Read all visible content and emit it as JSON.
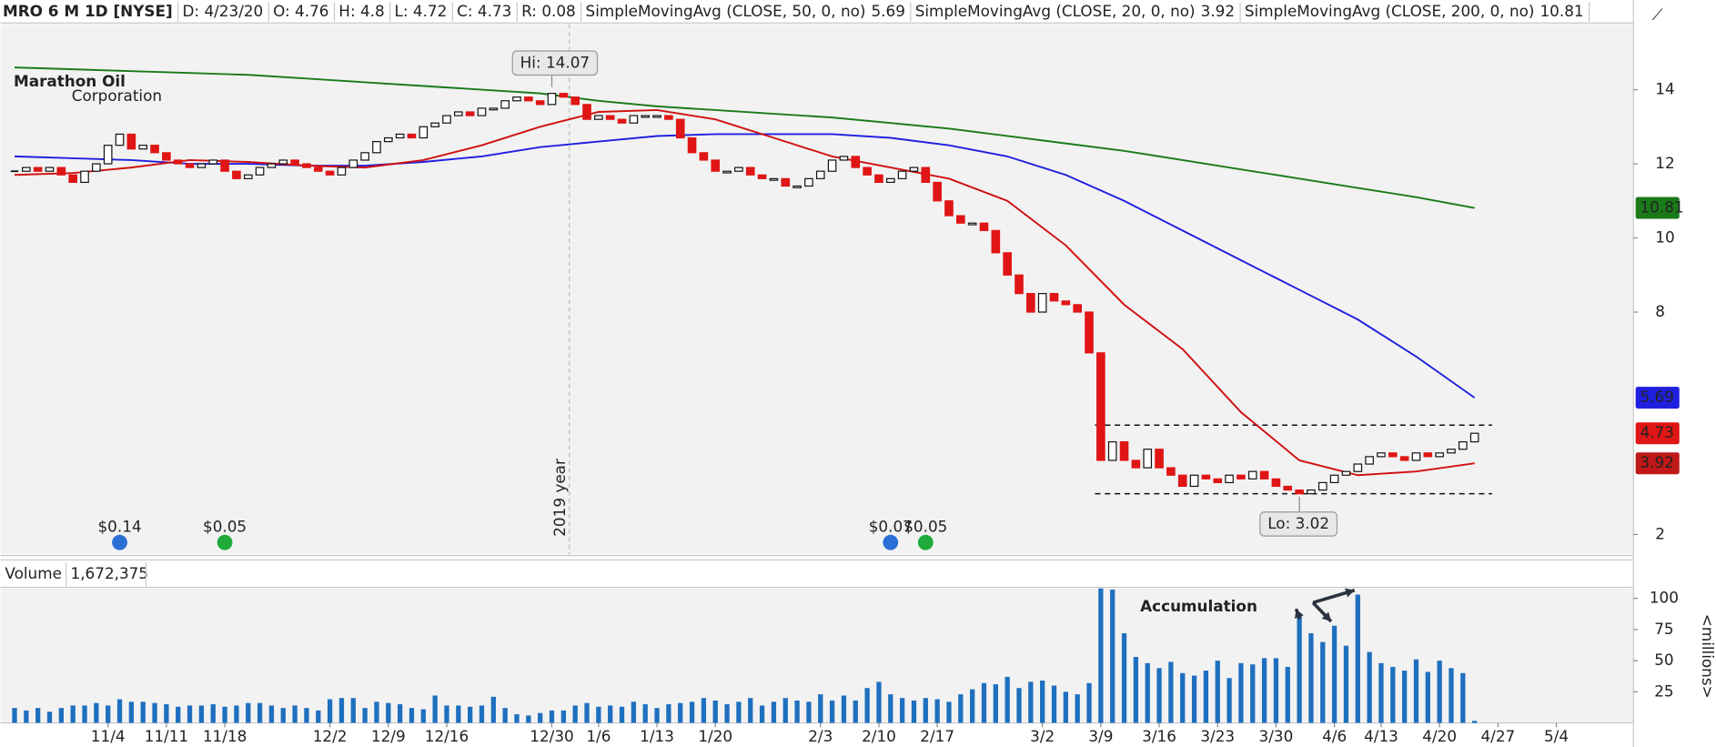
{
  "chart_data": {
    "type": "candlestick",
    "title": "MRO 6 M 1D [NYSE]",
    "header": [
      "D: 4/23/20",
      "O: 4.76",
      "H: 4.8",
      "L: 4.72",
      "C: 4.73",
      "R: 0.08"
    ],
    "logo": [
      "Marathon Oil",
      "Corporation"
    ],
    "close": [
      11.8,
      11.9,
      11.8,
      11.9,
      11.7,
      11.5,
      11.8,
      12.0,
      12.5,
      12.8,
      12.4,
      12.5,
      12.3,
      12.1,
      12.0,
      11.9,
      12.0,
      12.1,
      11.8,
      11.6,
      11.7,
      11.9,
      12.0,
      12.1,
      12.0,
      11.9,
      11.8,
      11.7,
      11.9,
      12.1,
      12.3,
      12.6,
      12.7,
      12.8,
      12.7,
      13.0,
      13.1,
      13.3,
      13.4,
      13.3,
      13.5,
      13.5,
      13.7,
      13.8,
      13.7,
      13.6,
      13.9,
      13.8,
      13.6,
      13.2,
      13.3,
      13.2,
      13.1,
      13.3,
      13.3,
      13.3,
      13.2,
      12.7,
      12.3,
      12.1,
      11.8,
      11.8,
      11.9,
      11.7,
      11.6,
      11.6,
      11.4,
      11.4,
      11.6,
      11.8,
      12.1,
      12.2,
      11.9,
      11.7,
      11.5,
      11.6,
      11.8,
      11.9,
      11.5,
      11.0,
      10.6,
      10.4,
      10.4,
      10.2,
      9.6,
      9.0,
      8.5,
      8.0,
      8.5,
      8.3,
      8.2,
      8.0,
      6.9,
      4.0,
      4.5,
      4.0,
      3.8,
      4.3,
      3.8,
      3.6,
      3.3,
      3.6,
      3.5,
      3.4,
      3.6,
      3.5,
      3.7,
      3.5,
      3.3,
      3.2,
      3.1,
      3.2,
      3.4,
      3.6,
      3.7,
      3.9,
      4.1,
      4.2,
      4.1,
      4.0,
      4.2,
      4.1,
      4.2,
      4.3,
      4.5,
      4.73
    ],
    "up_color": "#ffffff",
    "down_color": "#e01515",
    "series": [
      {
        "name": "SimpleMovingAvg (CLOSE, 50, 0, no)",
        "color": "#1f1fe0",
        "x": [
          0,
          5,
          10,
          15,
          20,
          25,
          30,
          35,
          40,
          45,
          50,
          55,
          60,
          65,
          70,
          75,
          80,
          85,
          90,
          95,
          100,
          105,
          110,
          115,
          120,
          125
        ],
        "values": [
          12.2,
          12.15,
          12.1,
          12.0,
          12.0,
          11.95,
          11.95,
          12.05,
          12.2,
          12.45,
          12.6,
          12.75,
          12.8,
          12.8,
          12.8,
          12.7,
          12.5,
          12.2,
          11.7,
          11.0,
          10.2,
          9.4,
          8.6,
          7.8,
          6.8,
          5.69
        ]
      },
      {
        "name": "SimpleMovingAvg (CLOSE, 20, 0, no)",
        "color": "#d01010",
        "x": [
          0,
          5,
          10,
          15,
          20,
          25,
          30,
          35,
          40,
          45,
          50,
          55,
          60,
          65,
          70,
          75,
          80,
          85,
          90,
          95,
          100,
          105,
          110,
          115,
          120,
          125
        ],
        "values": [
          11.7,
          11.75,
          11.9,
          12.1,
          12.05,
          11.95,
          11.9,
          12.1,
          12.5,
          13.0,
          13.4,
          13.45,
          13.2,
          12.7,
          12.2,
          11.9,
          11.6,
          11.0,
          9.8,
          8.2,
          7.0,
          5.3,
          4.0,
          3.6,
          3.7,
          3.92
        ]
      },
      {
        "name": "SimpleMovingAvg (CLOSE, 200, 0, no)",
        "color": "#1a7a1a",
        "x": [
          0,
          5,
          10,
          15,
          20,
          25,
          30,
          35,
          40,
          45,
          50,
          55,
          60,
          65,
          70,
          75,
          80,
          85,
          90,
          95,
          100,
          105,
          110,
          115,
          120,
          125
        ],
        "values": [
          14.6,
          14.55,
          14.5,
          14.45,
          14.4,
          14.3,
          14.2,
          14.1,
          14.0,
          13.9,
          13.7,
          13.55,
          13.45,
          13.35,
          13.25,
          13.1,
          12.95,
          12.75,
          12.55,
          12.35,
          12.1,
          11.85,
          11.6,
          11.35,
          11.1,
          10.81
        ]
      }
    ],
    "ylim": [
      1.46,
      15.77
    ],
    "yticks": [
      2,
      8,
      10,
      12,
      14
    ],
    "xlim": [
      -1.2,
      138.6
    ],
    "xticks": [
      {
        "value": 8,
        "label": "11/4"
      },
      {
        "value": 13,
        "label": "11/11"
      },
      {
        "value": 18,
        "label": "11/18"
      },
      {
        "value": 27,
        "label": "12/2"
      },
      {
        "value": 32,
        "label": "12/9"
      },
      {
        "value": 37,
        "label": "12/16"
      },
      {
        "value": 46,
        "label": "12/30"
      },
      {
        "value": 50,
        "label": "1/6"
      },
      {
        "value": 55,
        "label": "1/13"
      },
      {
        "value": 60,
        "label": "1/20"
      },
      {
        "value": 69,
        "label": "2/3"
      },
      {
        "value": 74,
        "label": "2/10"
      },
      {
        "value": 79,
        "label": "2/17"
      },
      {
        "value": 88,
        "label": "3/2"
      },
      {
        "value": 93,
        "label": "3/9"
      },
      {
        "value": 98,
        "label": "3/16"
      },
      {
        "value": 103,
        "label": "3/23"
      },
      {
        "value": 108,
        "label": "3/30"
      },
      {
        "value": 113,
        "label": "4/6"
      },
      {
        "value": 117,
        "label": "4/13"
      },
      {
        "value": 122,
        "label": "4/20"
      },
      {
        "value": 127,
        "label": "4/27"
      },
      {
        "value": 132,
        "label": "5/4"
      }
    ],
    "year_marker": {
      "label": "2019 year",
      "x": 47.5
    },
    "annotations": [
      {
        "text": "Hi: 14.07",
        "x": 46,
        "value": 14.07
      },
      {
        "text": "Lo: 3.02",
        "x": 110,
        "value": 3.02
      }
    ],
    "range_lines": [
      4.95,
      3.1
    ],
    "events": [
      {
        "label": "$0.14",
        "x": 9
      },
      {
        "label": "$0.05",
        "x": 18
      },
      {
        "label": "$0.07",
        "x": 75
      },
      {
        "label": "$0.05",
        "x": 78
      }
    ],
    "volume": {
      "title": "Volume",
      "last": "1,672,375",
      "unit": "<millions>",
      "color": "#1f6fbf",
      "values": [
        12,
        10,
        12,
        9,
        12,
        14,
        14,
        16,
        14,
        19,
        17,
        17,
        16,
        15,
        13,
        14,
        14,
        15,
        13,
        14,
        16,
        16,
        14,
        12,
        14,
        12,
        10,
        19,
        20,
        20,
        12,
        17,
        16,
        15,
        12,
        11,
        22,
        14,
        14,
        13,
        14,
        21,
        12,
        7,
        6,
        8,
        10,
        10,
        14,
        16,
        13,
        14,
        13,
        17,
        15,
        12,
        15,
        16,
        17,
        20,
        18,
        15,
        17,
        20,
        14,
        17,
        20,
        18,
        17,
        23,
        18,
        22,
        18,
        28,
        33,
        23,
        20,
        18,
        20,
        19,
        17,
        23,
        27,
        32,
        31,
        37,
        28,
        33,
        34,
        30,
        25,
        23,
        32,
        108,
        107,
        72,
        53,
        48,
        44,
        49,
        40,
        38,
        42,
        50,
        36,
        48,
        47,
        52,
        52,
        45,
        88,
        72,
        65,
        78,
        62,
        103,
        57,
        48,
        45,
        42,
        51,
        41,
        50,
        44,
        40,
        1.67
      ],
      "ylim": [
        0,
        108
      ],
      "yticks": [
        25,
        50,
        75,
        100
      ],
      "annotation": {
        "text": "Accumulation",
        "points": [
          110,
          113,
          115
        ]
      }
    }
  }
}
